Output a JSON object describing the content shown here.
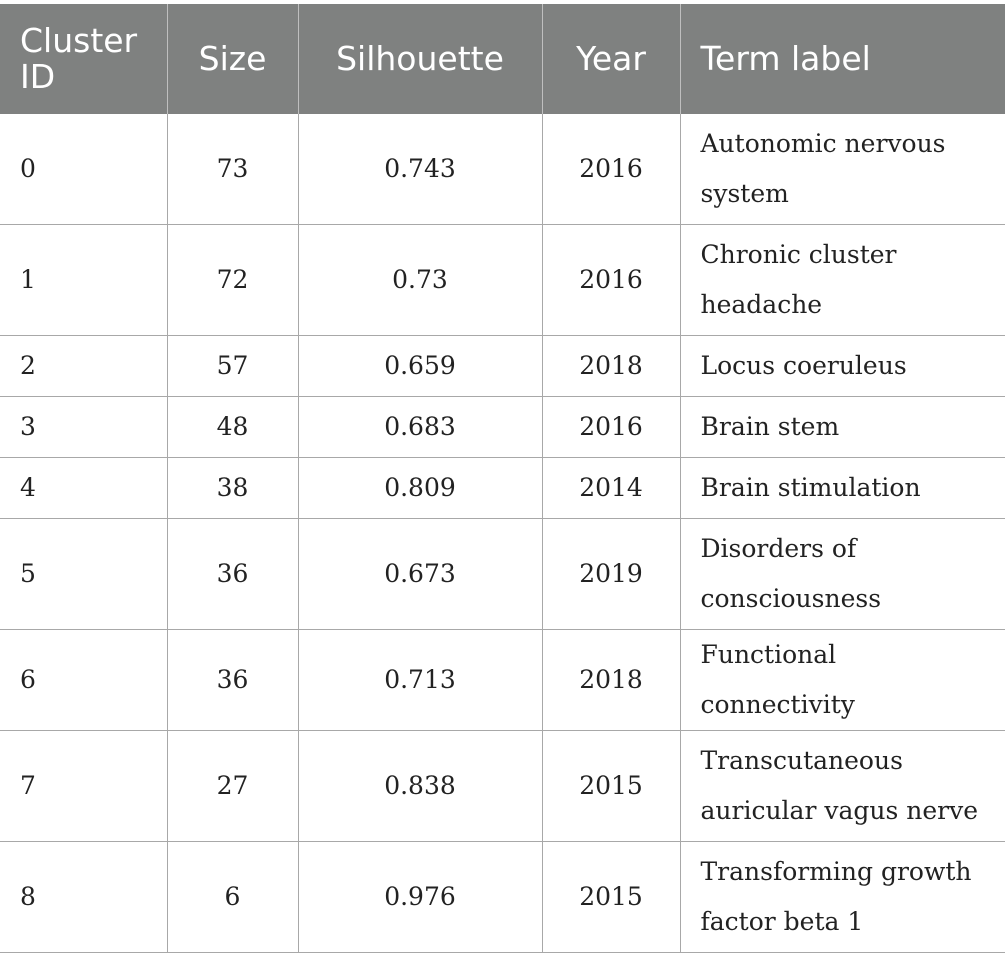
{
  "table": {
    "headers": [
      "Cluster ID",
      "Size",
      "Silhouette",
      "Year",
      "Term label"
    ],
    "rows": [
      {
        "id": "0",
        "size": "73",
        "silhouette": "0.743",
        "year": "2016",
        "label": "Autonomic nervous system"
      },
      {
        "id": "1",
        "size": "72",
        "silhouette": "0.73",
        "year": "2016",
        "label": "Chronic cluster headache"
      },
      {
        "id": "2",
        "size": "57",
        "silhouette": "0.659",
        "year": "2018",
        "label": "Locus coeruleus"
      },
      {
        "id": "3",
        "size": "48",
        "silhouette": "0.683",
        "year": "2016",
        "label": "Brain stem"
      },
      {
        "id": "4",
        "size": "38",
        "silhouette": "0.809",
        "year": "2014",
        "label": "Brain stimulation"
      },
      {
        "id": "5",
        "size": "36",
        "silhouette": "0.673",
        "year": "2019",
        "label": "Disorders of consciousness"
      },
      {
        "id": "6",
        "size": "36",
        "silhouette": "0.713",
        "year": "2018",
        "label": "Functional connectivity"
      },
      {
        "id": "7",
        "size": "27",
        "silhouette": "0.838",
        "year": "2015",
        "label": "Transcutaneous auricular vagus nerve"
      },
      {
        "id": "8",
        "size": "6",
        "silhouette": "0.976",
        "year": "2015",
        "label": "Transforming growth factor beta 1"
      }
    ]
  }
}
